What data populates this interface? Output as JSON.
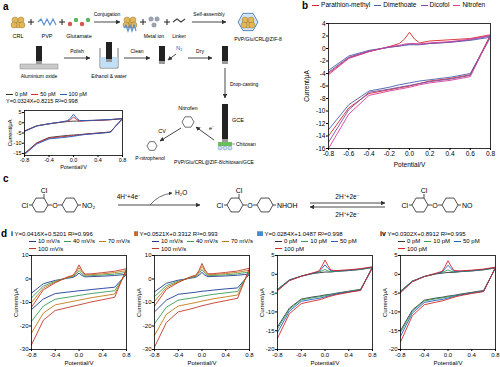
{
  "schematic": {
    "label": "a",
    "crl": "CRL",
    "pvp": "PVP",
    "glutamate": "Glutamate",
    "conjugation": "Conjugation",
    "metal_ion": "Metal ion",
    "linker": "Linker",
    "self_assembly": "Self-assembly",
    "composite": "PVP/Glu/CRL@ZIF-8",
    "alumina": "Aluminium oxide",
    "polish": "Polish",
    "clean": "Clean",
    "wash": "Ethanol & water",
    "gas": "N₂",
    "dry": "Dry",
    "drop_casting": "Drop-casting",
    "gce": "GCE",
    "chitosan": "Chitosan",
    "electrode": "PVP/Glu/CRL@ZIF-8/chitosan/GCE",
    "analyte": "Nitrofen",
    "cv": "CV",
    "electron": "e⁻",
    "product": "P-nitrophenol"
  },
  "reaction": {
    "label": "c",
    "atom_cl": "Cl",
    "atom_o": "O",
    "groups": [
      "NO₂",
      "NHOH",
      "NO"
    ],
    "step1": "4H⁺+4e⁻",
    "step1_product": "H₂O",
    "step2_forward": "2H⁺+2e⁻",
    "step2_reverse": "2H⁺+2e⁻"
  },
  "d_label": "d",
  "chart_data": [
    {
      "type": "line",
      "x_label": "Potential/V",
      "y_label": "Current/μA",
      "annotations": [
        "Y=0.0324X+0.8215",
        "R²=0.998"
      ],
      "x": [
        -0.8,
        -0.6,
        -0.4,
        -0.2,
        -0.1,
        -0.05,
        0,
        0.05,
        0.1,
        0.2,
        0.4,
        0.6,
        0.8,
        0.6,
        0.4,
        0.2,
        0.1,
        0,
        -0.1,
        -0.2,
        -0.4,
        -0.6,
        -0.8
      ],
      "xlim": [
        -0.8,
        0.8
      ],
      "xticks": [
        -0.8,
        -0.4,
        {
          "value": 0,
          "label": "0.0"
        },
        0.4,
        0.8
      ],
      "ylim": [
        -16,
        6
      ],
      "yticks": [
        -15,
        -10,
        -5,
        0,
        5
      ],
      "series": [
        {
          "name": "0 pM",
          "color": "#333333",
          "values": [
            -4,
            -1.5,
            -0.5,
            0.3,
            0.6,
            0.7,
            0.8,
            0.8,
            0.8,
            1,
            1.2,
            1.5,
            2,
            -4.5,
            -5,
            -5.5,
            -5.8,
            -6,
            -6.2,
            -6.5,
            -7.2,
            -9.8,
            -15
          ]
        },
        {
          "name": "50 pM",
          "color": "#d62728",
          "values": [
            -4.1,
            -1.5,
            -0.5,
            0.3,
            0.8,
            1.5,
            2.8,
            1.6,
            0.9,
            1,
            1.2,
            1.5,
            2,
            -4.6,
            -5.1,
            -5.6,
            -5.9,
            -6.3,
            -6.6,
            -6.9,
            -7.5,
            -10,
            -15.2
          ]
        },
        {
          "name": "100 pM",
          "color": "#1f5fbf",
          "values": [
            -4.2,
            -1.6,
            -0.5,
            0.4,
            1,
            2.2,
            4.2,
            2.3,
            1.1,
            1.1,
            1.3,
            1.6,
            2.1,
            -4.7,
            -5.2,
            -5.7,
            -6.1,
            -6.6,
            -7,
            -7.3,
            -7.9,
            -10.4,
            -15.5
          ]
        }
      ]
    },
    {
      "title": "b",
      "type": "line",
      "x_label": "Potential/V",
      "y_label": "Current/μA",
      "x": [
        -0.8,
        -0.6,
        -0.4,
        -0.2,
        -0.1,
        -0.05,
        0,
        0.05,
        0.1,
        0.2,
        0.4,
        0.6,
        0.8,
        0.6,
        0.4,
        0.2,
        0.1,
        0,
        -0.1,
        -0.2,
        -0.4,
        -0.6,
        -0.8
      ],
      "xlim": [
        -0.8,
        0.8
      ],
      "xticks": [
        -0.8,
        -0.6,
        -0.4,
        -0.2,
        {
          "value": 0,
          "label": "0.0"
        },
        0.2,
        0.4,
        0.6,
        0.8
      ],
      "ylim": [
        -16,
        4
      ],
      "yticks": [
        -16,
        -14,
        -12,
        -10,
        -8,
        -6,
        -4,
        -2,
        0,
        2,
        4
      ],
      "series": [
        {
          "name": "Parathion-methyl",
          "color": "#d62728",
          "values": [
            -4,
            -1.5,
            -0.5,
            0.3,
            0.8,
            1.5,
            2.6,
            1.5,
            0.9,
            1.2,
            1.4,
            1.6,
            2.2,
            -4.2,
            -4.8,
            -5.2,
            -5.6,
            -6,
            -6.3,
            -6.6,
            -7.2,
            -9.5,
            -14
          ]
        },
        {
          "name": "Dimethoate",
          "color": "#4a5fa8",
          "values": [
            -3.5,
            -1.2,
            -0.3,
            0.2,
            0.4,
            0.5,
            0.6,
            0.6,
            0.6,
            0.8,
            1,
            1.3,
            1.8,
            -4,
            -4.6,
            -5,
            -5.2,
            -5.5,
            -5.8,
            -6.2,
            -6.8,
            -9,
            -13
          ]
        },
        {
          "name": "Dicofol",
          "color": "#7b4ea3",
          "values": [
            -3.8,
            -1.4,
            -0.4,
            0.2,
            0.4,
            0.6,
            0.7,
            0.7,
            0.7,
            0.8,
            1,
            1.4,
            2,
            -4.3,
            -4.9,
            -5.3,
            -5.6,
            -5.9,
            -6.2,
            -6.5,
            -7,
            -9.8,
            -15
          ]
        },
        {
          "name": "Nitrofen",
          "color": "#d63c9a",
          "values": [
            -4.2,
            -1.6,
            -0.5,
            0.3,
            0.5,
            0.7,
            0.8,
            0.8,
            0.7,
            0.9,
            1.1,
            1.5,
            2.1,
            -4.5,
            -5.1,
            -5.5,
            -5.8,
            -6.2,
            -6.5,
            -6.8,
            -7.5,
            -10.5,
            -16
          ]
        }
      ]
    },
    {
      "title": "i",
      "type": "line",
      "x_label": "Potential/V",
      "y_label": "Current/μA",
      "annotations": [
        "Y=0.0416X+0.5201",
        "R²=0.996"
      ],
      "x": [
        -0.8,
        -0.6,
        -0.4,
        -0.2,
        -0.1,
        -0.05,
        0,
        0.05,
        0.1,
        0.2,
        0.4,
        0.6,
        0.8,
        0.6,
        0.4,
        0.2,
        0.1,
        0,
        -0.1,
        -0.2,
        -0.4,
        -0.6,
        -0.8
      ],
      "xlim": [
        -0.8,
        0.8
      ],
      "xticks": [
        -0.8,
        -0.4,
        {
          "value": 0,
          "label": "0.0"
        },
        0.4,
        0.8
      ],
      "ylim": [
        -30,
        10
      ],
      "yticks": [
        -30,
        -20,
        -10,
        0,
        10
      ],
      "series": [
        {
          "name": "10 mV/s",
          "color": "#1f3a93",
          "values": [
            -6,
            -2,
            -0.6,
            0.3,
            0.7,
            1.4,
            2.5,
            1.5,
            0.9,
            1,
            1.2,
            1.5,
            2,
            -3.5,
            -4,
            -4.5,
            -4.8,
            -5,
            -5.3,
            -5.6,
            -6.2,
            -8.5,
            -13
          ]
        },
        {
          "name": "40 mV/s",
          "color": "#3b9c5a",
          "values": [
            -8,
            -3,
            -1,
            0.5,
            1,
            2,
            3.6,
            2.2,
            1.3,
            1.4,
            1.7,
            2.1,
            2.8,
            -5,
            -5.6,
            -6.2,
            -6.6,
            -7,
            -7.4,
            -7.8,
            -8.6,
            -11.5,
            -18
          ]
        },
        {
          "name": "70 mV/s",
          "color": "#c07a1a",
          "values": [
            -10,
            -3.8,
            -1.3,
            0.6,
            1.3,
            2.7,
            4.8,
            2.9,
            1.7,
            1.8,
            2.2,
            2.7,
            3.6,
            -6.4,
            -7.2,
            -8,
            -8.5,
            -9,
            -9.5,
            -10,
            -11,
            -14.5,
            -23
          ]
        },
        {
          "name": "100 mV/s",
          "color": "#c0392b",
          "values": [
            -12,
            -4.6,
            -1.6,
            0.8,
            1.6,
            3.4,
            6,
            3.6,
            2.1,
            2.2,
            2.7,
            3.3,
            4.4,
            -7.8,
            -8.8,
            -9.8,
            -10.4,
            -11,
            -11.6,
            -12.2,
            -13.4,
            -17.5,
            -28
          ]
        }
      ]
    },
    {
      "title": "ii",
      "type": "line",
      "x_label": "Potential/V",
      "y_label": "Current/μA",
      "annotations": [
        "Y=0.0521X+0.3312",
        "R²=0.993"
      ],
      "x": [
        -0.8,
        -0.6,
        -0.4,
        -0.2,
        -0.1,
        -0.05,
        0,
        0.05,
        0.1,
        0.2,
        0.4,
        0.6,
        0.8,
        0.6,
        0.4,
        0.2,
        0.1,
        0,
        -0.1,
        -0.2,
        -0.4,
        -0.6,
        -0.8
      ],
      "xlim": [
        -0.8,
        0.8
      ],
      "xticks": [
        -0.8,
        -0.4,
        {
          "value": 0,
          "label": "0.0"
        },
        0.4,
        0.8
      ],
      "ylim": [
        -30,
        10
      ],
      "yticks": [
        -30,
        -20,
        -10,
        0,
        10
      ],
      "series": [
        {
          "name": "10 mV/s",
          "color": "#1f3a93",
          "values": [
            -5.5,
            -1.8,
            -0.5,
            0.3,
            0.8,
            1.6,
            2.8,
            1.6,
            1,
            1.1,
            1.3,
            1.6,
            2.1,
            -3.8,
            -4.2,
            -4.7,
            -5,
            -5.2,
            -5.6,
            -5.9,
            -6.5,
            -9,
            -14
          ]
        },
        {
          "name": "40 mV/s",
          "color": "#3b9c5a",
          "values": [
            -7.5,
            -2.8,
            -0.9,
            0.5,
            1.1,
            2.3,
            4,
            2.4,
            1.4,
            1.5,
            1.8,
            2.2,
            3,
            -5.3,
            -5.9,
            -6.5,
            -6.9,
            -7.3,
            -7.8,
            -8.2,
            -9,
            -12,
            -19
          ]
        },
        {
          "name": "70 mV/s",
          "color": "#c07a1a",
          "values": [
            -9.5,
            -3.6,
            -1.2,
            0.7,
            1.4,
            3,
            5.4,
            3.2,
            1.8,
            1.9,
            2.3,
            2.8,
            3.8,
            -6.8,
            -7.6,
            -8.4,
            -8.9,
            -9.4,
            -10,
            -10.5,
            -11.5,
            -15,
            -24
          ]
        },
        {
          "name": "100 mV/s",
          "color": "#c0392b",
          "values": [
            -11.5,
            -4.4,
            -1.5,
            0.9,
            1.7,
            3.7,
            6.6,
            3.9,
            2.2,
            2.3,
            2.8,
            3.4,
            4.6,
            -8.2,
            -9.2,
            -10.2,
            -10.8,
            -11.4,
            -12.1,
            -12.8,
            -14,
            -18.5,
            -29
          ]
        }
      ]
    },
    {
      "title": "iii",
      "type": "line",
      "x_label": "Potential/V",
      "y_label": "Current/μA",
      "annotations": [
        "Y=0.0284X+1.0487",
        "R²=0.998"
      ],
      "x": [
        -0.8,
        -0.6,
        -0.4,
        -0.2,
        -0.1,
        -0.05,
        0,
        0.05,
        0.1,
        0.2,
        0.4,
        0.6,
        0.8,
        0.6,
        0.4,
        0.2,
        0.1,
        0,
        -0.1,
        -0.2,
        -0.4,
        -0.6,
        -0.8
      ],
      "xlim": [
        -0.8,
        0.8
      ],
      "xticks": [
        -0.8,
        -0.4,
        {
          "value": 0,
          "label": "0.0"
        },
        0.4,
        0.8
      ],
      "ylim": [
        -20,
        5
      ],
      "yticks": [
        -20,
        -15,
        -10,
        -5,
        0,
        5
      ],
      "series": [
        {
          "name": "0 pM",
          "color": "#333333",
          "values": [
            -4,
            -1.5,
            -0.5,
            0.2,
            0.4,
            0.5,
            0.6,
            0.6,
            0.6,
            0.8,
            1,
            1.3,
            1.8,
            -4,
            -4.5,
            -5,
            -5.3,
            -5.5,
            -5.8,
            -6,
            -6.6,
            -9,
            -14
          ]
        },
        {
          "name": "10 pM",
          "color": "#3b9c5a",
          "values": [
            -4,
            -1.5,
            -0.5,
            0.3,
            0.6,
            0.9,
            1.3,
            0.9,
            0.7,
            0.8,
            1,
            1.3,
            1.8,
            -4.1,
            -4.6,
            -5.1,
            -5.4,
            -5.7,
            -6,
            -6.2,
            -6.8,
            -9.3,
            -14.5
          ]
        },
        {
          "name": "50 pM",
          "color": "#1f5fbf",
          "values": [
            -4.2,
            -1.6,
            -0.5,
            0.3,
            0.7,
            1.6,
            2.5,
            1.6,
            0.9,
            0.9,
            1.1,
            1.4,
            1.9,
            -4.2,
            -4.7,
            -5.2,
            -5.6,
            -6,
            -6.4,
            -6.6,
            -7.2,
            -9.8,
            -15.5
          ]
        },
        {
          "name": "100 pM",
          "color": "#d62728",
          "values": [
            -4.4,
            -1.7,
            -0.5,
            0.4,
            0.9,
            2.2,
            3.8,
            2.3,
            1.1,
            1,
            1.2,
            1.5,
            2,
            -4.3,
            -4.8,
            -5.4,
            -5.8,
            -6.3,
            -6.8,
            -7.1,
            -7.8,
            -10.5,
            -17
          ]
        }
      ]
    },
    {
      "title": "iv",
      "type": "line",
      "x_label": "Potential/V",
      "y_label": "Current/μA",
      "annotations": [
        "Y=0.0302X+0.8912",
        "R²=0.995"
      ],
      "x": [
        -0.8,
        -0.6,
        -0.4,
        -0.2,
        -0.1,
        -0.05,
        0,
        0.05,
        0.1,
        0.2,
        0.4,
        0.6,
        0.8,
        0.6,
        0.4,
        0.2,
        0.1,
        0,
        -0.1,
        -0.2,
        -0.4,
        -0.6,
        -0.8
      ],
      "xlim": [
        -0.8,
        0.8
      ],
      "xticks": [
        -0.8,
        -0.4,
        {
          "value": 0,
          "label": "0.0"
        },
        0.4,
        0.8
      ],
      "ylim": [
        -20,
        5
      ],
      "yticks": [
        -20,
        -15,
        -10,
        -5,
        0,
        5
      ],
      "series": [
        {
          "name": "0 pM",
          "color": "#333333",
          "values": [
            -4.5,
            -1.8,
            -0.6,
            0.1,
            0.3,
            0.4,
            0.5,
            0.5,
            0.5,
            0.7,
            0.9,
            1.2,
            1.7,
            -4.3,
            -4.8,
            -5.3,
            -5.6,
            -5.8,
            -6.1,
            -6.3,
            -6.9,
            -9.5,
            -15
          ]
        },
        {
          "name": "10 pM",
          "color": "#3b9c5a",
          "values": [
            -4.5,
            -1.8,
            -0.6,
            0.2,
            0.5,
            0.8,
            1.2,
            0.8,
            0.6,
            0.7,
            0.9,
            1.2,
            1.7,
            -4.4,
            -4.9,
            -5.4,
            -5.7,
            -6,
            -6.3,
            -6.5,
            -7.1,
            -9.8,
            -15.5
          ]
        },
        {
          "name": "50 pM",
          "color": "#1f5fbf",
          "values": [
            -4.7,
            -1.9,
            -0.6,
            0.2,
            0.6,
            1.5,
            2.4,
            1.5,
            0.8,
            0.8,
            1,
            1.3,
            1.8,
            -4.5,
            -5,
            -5.5,
            -5.9,
            -6.3,
            -6.7,
            -6.9,
            -7.5,
            -10.3,
            -16.5
          ]
        },
        {
          "name": "100 pM",
          "color": "#d62728",
          "values": [
            -4.9,
            -2,
            -0.6,
            0.3,
            0.8,
            2.1,
            3.6,
            2.2,
            1,
            0.9,
            1.1,
            1.4,
            1.9,
            -4.6,
            -5.1,
            -5.7,
            -6.1,
            -6.6,
            -7.1,
            -7.4,
            -8.1,
            -11,
            -18
          ]
        }
      ]
    }
  ]
}
